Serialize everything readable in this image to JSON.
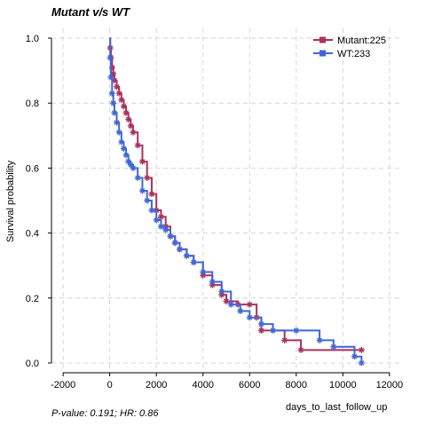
{
  "chart_data": {
    "type": "line",
    "subtype": "kaplan-meier",
    "title": "Mutant v/s WT",
    "xlabel": "days_to_last_follow_up",
    "ylabel": "Survival probability",
    "footnote": "P-value: 0.191; HR: 0.86",
    "xlim": [
      -2500,
      12500
    ],
    "ylim": [
      -0.03,
      1.03
    ],
    "x_ticks": [
      -2000,
      0,
      2000,
      4000,
      6000,
      8000,
      10000,
      12000
    ],
    "y_ticks": [
      0.0,
      0.2,
      0.4,
      0.6,
      0.8,
      1.0
    ],
    "x_tick_labels": [
      "-2000",
      "0",
      "2000",
      "4000",
      "6000",
      "8000",
      "10000",
      "12000"
    ],
    "y_tick_labels": [
      "0.0",
      "0.2",
      "0.4",
      "0.6",
      "0.8",
      "1.0"
    ],
    "grid": true,
    "legend_position": "top-right",
    "series": [
      {
        "name": "Mutant:225",
        "color": "#A8325E",
        "x": [
          0,
          20,
          50,
          100,
          150,
          200,
          300,
          400,
          500,
          600,
          700,
          800,
          900,
          1000,
          1200,
          1400,
          1600,
          1800,
          2000,
          2200,
          2400,
          2600,
          2800,
          3000,
          3300,
          3600,
          4000,
          4400,
          4800,
          5000,
          5500,
          6000,
          6300,
          6500,
          7500,
          8200,
          10800
        ],
        "y": [
          1.0,
          0.97,
          0.94,
          0.91,
          0.89,
          0.87,
          0.85,
          0.83,
          0.81,
          0.79,
          0.77,
          0.75,
          0.73,
          0.71,
          0.67,
          0.62,
          0.57,
          0.52,
          0.47,
          0.45,
          0.42,
          0.39,
          0.37,
          0.35,
          0.33,
          0.31,
          0.27,
          0.24,
          0.21,
          0.19,
          0.18,
          0.18,
          0.14,
          0.1,
          0.07,
          0.04,
          0.04
        ]
      },
      {
        "name": "WT:233",
        "color": "#3F67D6",
        "x": [
          0,
          20,
          50,
          100,
          150,
          200,
          300,
          400,
          500,
          600,
          700,
          800,
          900,
          1000,
          1200,
          1400,
          1600,
          1800,
          2000,
          2200,
          2400,
          2600,
          2800,
          3000,
          3300,
          3600,
          4000,
          4400,
          4800,
          5200,
          5600,
          6000,
          6500,
          7000,
          8000,
          9000,
          9600,
          10500,
          10800
        ],
        "y": [
          1.0,
          0.94,
          0.88,
          0.83,
          0.8,
          0.77,
          0.74,
          0.71,
          0.68,
          0.66,
          0.64,
          0.62,
          0.61,
          0.6,
          0.57,
          0.53,
          0.5,
          0.47,
          0.44,
          0.42,
          0.41,
          0.39,
          0.37,
          0.35,
          0.33,
          0.31,
          0.28,
          0.25,
          0.22,
          0.18,
          0.16,
          0.14,
          0.12,
          0.1,
          0.1,
          0.07,
          0.05,
          0.02,
          0.0
        ]
      }
    ]
  }
}
